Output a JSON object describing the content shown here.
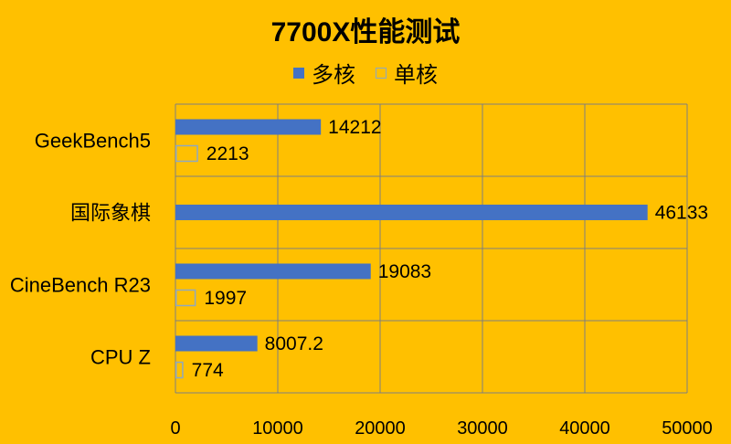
{
  "chart_data": {
    "type": "bar",
    "orientation": "horizontal",
    "title": "7700X性能测试",
    "categories": [
      "GeekBench5",
      "国际象棋",
      "CineBench R23",
      "CPU Z"
    ],
    "series": [
      {
        "name": "多核",
        "values": [
          14212,
          46133,
          19083,
          8007.2
        ],
        "labels": [
          "14212",
          "46133",
          "19083",
          "8007.2"
        ],
        "color": "#4472C4",
        "style": "solid"
      },
      {
        "name": "单核",
        "values": [
          2213,
          null,
          1997,
          774
        ],
        "labels": [
          "2213",
          "",
          "1997",
          "774"
        ],
        "color": "#8FA8C0",
        "style": "hollow"
      }
    ],
    "xlim": [
      0,
      50000
    ],
    "xticks": [
      "0",
      "10000",
      "20000",
      "30000",
      "40000",
      "50000"
    ],
    "grid": true,
    "legend": "top"
  },
  "colors": {
    "background": "#FFC000",
    "grid": "#7F7F7F"
  }
}
